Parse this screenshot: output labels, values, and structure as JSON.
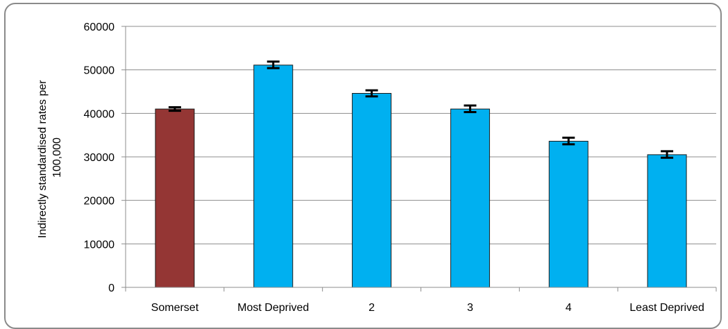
{
  "chart_data": {
    "type": "bar",
    "title": "",
    "xlabel": "",
    "ylabel_lines": [
      "Indirectly standardised rates per",
      "100,000"
    ],
    "categories": [
      "Somerset",
      "Most Deprived",
      "2",
      "3",
      "4",
      "Least Deprived"
    ],
    "values": [
      41000,
      51100,
      44600,
      41000,
      33600,
      30500
    ],
    "error_low": [
      40600,
      50400,
      43900,
      40300,
      32900,
      29800
    ],
    "error_high": [
      41400,
      51900,
      45300,
      41800,
      34400,
      31300
    ],
    "bar_colors": [
      "#943634",
      "#00b0f0",
      "#00b0f0",
      "#00b0f0",
      "#00b0f0",
      "#00b0f0"
    ],
    "ylim": [
      0,
      60000
    ],
    "yticks": [
      "0",
      "10000",
      "20000",
      "30000",
      "40000",
      "50000",
      "60000"
    ],
    "ytick_values": [
      0,
      10000,
      20000,
      30000,
      40000,
      50000,
      60000
    ],
    "grid": true,
    "legend": "none"
  }
}
